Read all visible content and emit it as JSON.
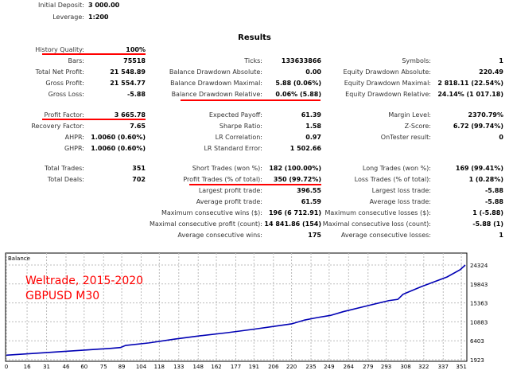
{
  "header": {
    "initial_deposit_label": "Initial Deposit:",
    "initial_deposit": "3 000.00",
    "leverage_label": "Leverage:",
    "leverage": "1:200"
  },
  "results_title": "Results",
  "rows": [
    [
      [
        "History Quality:",
        "100%"
      ],
      null,
      null
    ],
    [
      [
        "Bars:",
        "75518"
      ],
      [
        "Ticks:",
        "133633866"
      ],
      [
        "Symbols:",
        "1"
      ]
    ],
    [
      [
        "Total Net Profit:",
        "21 548.89"
      ],
      [
        "Balance Drawdown Absolute:",
        "0.00"
      ],
      [
        "Equity Drawdown Absolute:",
        "220.49"
      ]
    ],
    [
      [
        "Gross Profit:",
        "21 554.77"
      ],
      [
        "Balance Drawdown Maximal:",
        "5.88 (0.06%)"
      ],
      [
        "Equity Drawdown Maximal:",
        "2 818.11 (22.54%)"
      ]
    ],
    [
      [
        "Gross Loss:",
        "-5.88"
      ],
      [
        "Balance Drawdown Relative:",
        "0.06% (5.88)"
      ],
      [
        "Equity Drawdown Relative:",
        "24.14% (1 017.18)"
      ]
    ],
    [
      [
        "Profit Factor:",
        "3 665.78"
      ],
      [
        "Expected Payoff:",
        "61.39"
      ],
      [
        "Margin Level:",
        "2370.79%"
      ]
    ],
    [
      [
        "Recovery Factor:",
        "7.65"
      ],
      [
        "Sharpe Ratio:",
        "1.58"
      ],
      [
        "Z-Score:",
        "6.72 (99.74%)"
      ]
    ],
    [
      [
        "AHPR:",
        "1.0060 (0.60%)"
      ],
      [
        "LR Correlation:",
        "0.97"
      ],
      [
        "OnTester result:",
        "0"
      ]
    ],
    [
      [
        "GHPR:",
        "1.0060 (0.60%)"
      ],
      [
        "LR Standard Error:",
        "1 502.66"
      ],
      null
    ],
    [
      [
        "Total Trades:",
        "351"
      ],
      [
        "Short Trades (won %):",
        "182 (100.00%)"
      ],
      [
        "Long Trades (won %):",
        "169 (99.41%)"
      ]
    ],
    [
      [
        "Total Deals:",
        "702"
      ],
      [
        "Profit Trades (% of total):",
        "350 (99.72%)"
      ],
      [
        "Loss Trades (% of total):",
        "1 (0.28%)"
      ]
    ],
    [
      null,
      [
        "Largest profit trade:",
        "396.55"
      ],
      [
        "Largest loss trade:",
        "-5.88"
      ]
    ],
    [
      null,
      [
        "Average profit trade:",
        "61.59"
      ],
      [
        "Average loss trade:",
        "-5.88"
      ]
    ],
    [
      null,
      [
        "Maximum consecutive wins ($):",
        "196 (6 712.91)"
      ],
      [
        "Maximum consecutive losses ($):",
        "1 (-5.88)"
      ]
    ],
    [
      null,
      [
        "Maximal consecutive profit (count):",
        "14 841.86 (154)"
      ],
      [
        "Maximal consecutive loss (count):",
        "-5.88 (1)"
      ]
    ],
    [
      null,
      [
        "Average consecutive wins:",
        "175"
      ],
      [
        "Average consecutive losses:",
        "1"
      ]
    ]
  ],
  "highlight_color": "#ff0000",
  "chart_data": {
    "type": "line",
    "title": "Balance",
    "annotation": [
      "Weltrade, 2015-2020",
      "GBPUSD M30"
    ],
    "annotation_color": "#ff0000",
    "line_color": "#0000b4",
    "xticks": [
      0,
      16,
      31,
      46,
      60,
      75,
      89,
      104,
      118,
      133,
      148,
      162,
      177,
      191,
      206,
      220,
      235,
      249,
      264,
      279,
      293,
      308,
      322,
      337,
      351
    ],
    "yticks": [
      1923,
      6403,
      10883,
      15363,
      19843,
      24324
    ],
    "xlim": [
      0,
      354
    ],
    "ylim": [
      1923,
      24324
    ],
    "x": [
      0,
      20,
      40,
      60,
      80,
      88,
      92,
      110,
      130,
      150,
      170,
      190,
      206,
      220,
      230,
      240,
      250,
      260,
      280,
      295,
      302,
      306,
      320,
      340,
      350,
      354
    ],
    "y": [
      3000,
      3400,
      3800,
      4200,
      4600,
      4800,
      5300,
      5900,
      6800,
      7600,
      8300,
      9100,
      9800,
      10400,
      11300,
      11900,
      12400,
      13300,
      14800,
      15900,
      16200,
      17400,
      19200,
      21500,
      23200,
      24300
    ]
  }
}
